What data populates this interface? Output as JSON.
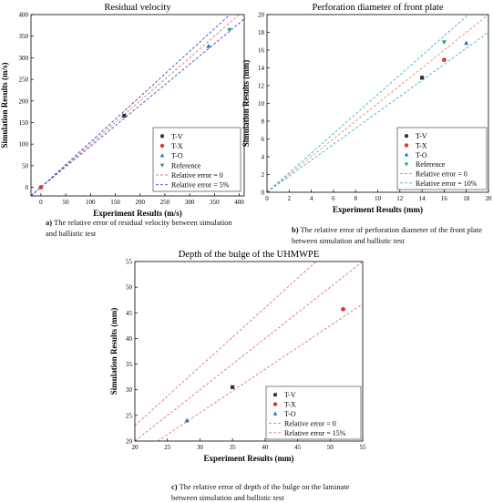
{
  "chart_data": [
    {
      "type": "scatter",
      "title": "Residual velocity",
      "xlabel": "Experiment Results (m/s)",
      "ylabel": "Simulation Results (m/s)",
      "xlim": [
        -20,
        410
      ],
      "ylim": [
        -20,
        400
      ],
      "xticks": [
        0,
        50,
        100,
        150,
        200,
        250,
        300,
        350,
        400
      ],
      "yticks": [
        0,
        50,
        100,
        150,
        200,
        250,
        300,
        350,
        400
      ],
      "error_lines": [
        0,
        0.05
      ],
      "series": [
        {
          "name": "T-V",
          "marker": "square",
          "color": "#333333",
          "points": [
            [
              168,
              166
            ]
          ]
        },
        {
          "name": "T-X",
          "marker": "circle",
          "color": "#e8312e",
          "points": [
            [
              0,
              0
            ]
          ]
        },
        {
          "name": "T-O",
          "marker": "triangle-up",
          "color": "#1f6fd1",
          "points": [
            [
              338,
              327
            ]
          ]
        },
        {
          "name": "Reference",
          "marker": "triangle-down",
          "color": "#21a06a",
          "points": [
            [
              380,
              365
            ]
          ]
        }
      ],
      "lines": [
        {
          "name": "Relative error = 0",
          "color": "#f07070"
        },
        {
          "name": "Relative error = 5%",
          "color": "#4a4ad0"
        }
      ],
      "legend": "bottom-right",
      "caption_label": "a)",
      "caption": "The relative error of residual velocity between simulation and ballistic test"
    },
    {
      "type": "scatter",
      "title": "Perforation diameter of front plate",
      "xlabel": "Experiment Results (mm)",
      "ylabel": "Simulation Results (mm)",
      "xlim": [
        0,
        20
      ],
      "ylim": [
        0,
        20
      ],
      "xticks": [
        0,
        2,
        4,
        6,
        8,
        10,
        12,
        14,
        16,
        18,
        20
      ],
      "yticks": [
        0,
        2,
        4,
        6,
        8,
        10,
        12,
        14,
        16,
        18,
        20
      ],
      "error_lines": [
        0,
        0.1
      ],
      "series": [
        {
          "name": "T-V",
          "marker": "square",
          "color": "#333333",
          "points": [
            [
              14,
              12.9
            ]
          ]
        },
        {
          "name": "T-X",
          "marker": "circle",
          "color": "#e8312e",
          "points": [
            [
              16,
              14.9
            ]
          ]
        },
        {
          "name": "T-O",
          "marker": "triangle-up",
          "color": "#1f6fd1",
          "points": [
            [
              18,
              16.8
            ]
          ]
        },
        {
          "name": "Reference",
          "marker": "triangle-down",
          "color": "#21a06a",
          "points": [
            [
              16,
              16.9
            ]
          ]
        }
      ],
      "lines": [
        {
          "name": "Relative error = 0",
          "color": "#f08a6a"
        },
        {
          "name": "Relative error = 10%",
          "color": "#38b6d8"
        }
      ],
      "legend": "bottom-right",
      "caption_label": "b)",
      "caption": "The relative error of perforation diameter of the front plate between simulation and ballistic test"
    },
    {
      "type": "scatter",
      "title": "Depth of the bulge of the UHMWPE",
      "xlabel": "Experiment Results (mm)",
      "ylabel": "Simulation Results (mm)",
      "xlim": [
        20,
        55
      ],
      "ylim": [
        20,
        55
      ],
      "xticks": [
        20,
        25,
        30,
        35,
        40,
        45,
        50,
        55
      ],
      "yticks": [
        20,
        25,
        30,
        35,
        40,
        45,
        50,
        55
      ],
      "error_lines": [
        0,
        0.15
      ],
      "series": [
        {
          "name": "T-V",
          "marker": "square",
          "color": "#333333",
          "points": [
            [
              35,
              30.5
            ]
          ]
        },
        {
          "name": "T-X",
          "marker": "circle",
          "color": "#e8312e",
          "points": [
            [
              52,
              45.7
            ]
          ]
        },
        {
          "name": "T-O",
          "marker": "triangle-up",
          "color": "#1f6fd1",
          "points": [
            [
              28,
              24
            ]
          ]
        }
      ],
      "lines": [
        {
          "name": "Relative error = 0",
          "color": "#f07070"
        },
        {
          "name": "Relative error = 15%",
          "color": "#f07070"
        }
      ],
      "legend": "bottom-right",
      "caption_label": "c)",
      "caption": "The relative error of depth of the bulge on the laminate between simulation and ballistic test"
    }
  ]
}
